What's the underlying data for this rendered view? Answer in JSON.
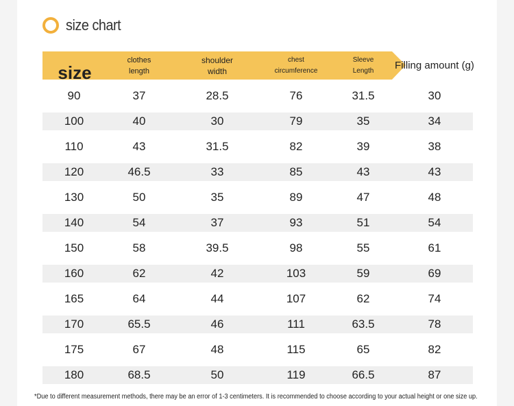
{
  "title": "size chart",
  "accent": "#f2b03c",
  "header": {
    "size": "size",
    "clothes_length": "clothes length",
    "shoulder_width": "shoulder width",
    "chest": "chest circumference",
    "sleeve": "Sleeve Length",
    "filling": "Filling amount (g)"
  },
  "rows": [
    [
      "90",
      "37",
      "28.5",
      "76",
      "31.5",
      "30"
    ],
    [
      "100",
      "40",
      "30",
      "79",
      "35",
      "34"
    ],
    [
      "110",
      "43",
      "31.5",
      "82",
      "39",
      "38"
    ],
    [
      "120",
      "46.5",
      "33",
      "85",
      "43",
      "43"
    ],
    [
      "130",
      "50",
      "35",
      "89",
      "47",
      "48"
    ],
    [
      "140",
      "54",
      "37",
      "93",
      "51",
      "54"
    ],
    [
      "150",
      "58",
      "39.5",
      "98",
      "55",
      "61"
    ],
    [
      "160",
      "62",
      "42",
      "103",
      "59",
      "69"
    ],
    [
      "165",
      "64",
      "44",
      "107",
      "62",
      "74"
    ],
    [
      "170",
      "65.5",
      "46",
      "111",
      "63.5",
      "78"
    ],
    [
      "175",
      "67",
      "48",
      "115",
      "65",
      "82"
    ],
    [
      "180",
      "68.5",
      "50",
      "119",
      "66.5",
      "87"
    ]
  ],
  "note": "*Due to different measurement methods, there may be an error of 1-3 centimeters. It is recommended to choose according to your actual height or one size up."
}
